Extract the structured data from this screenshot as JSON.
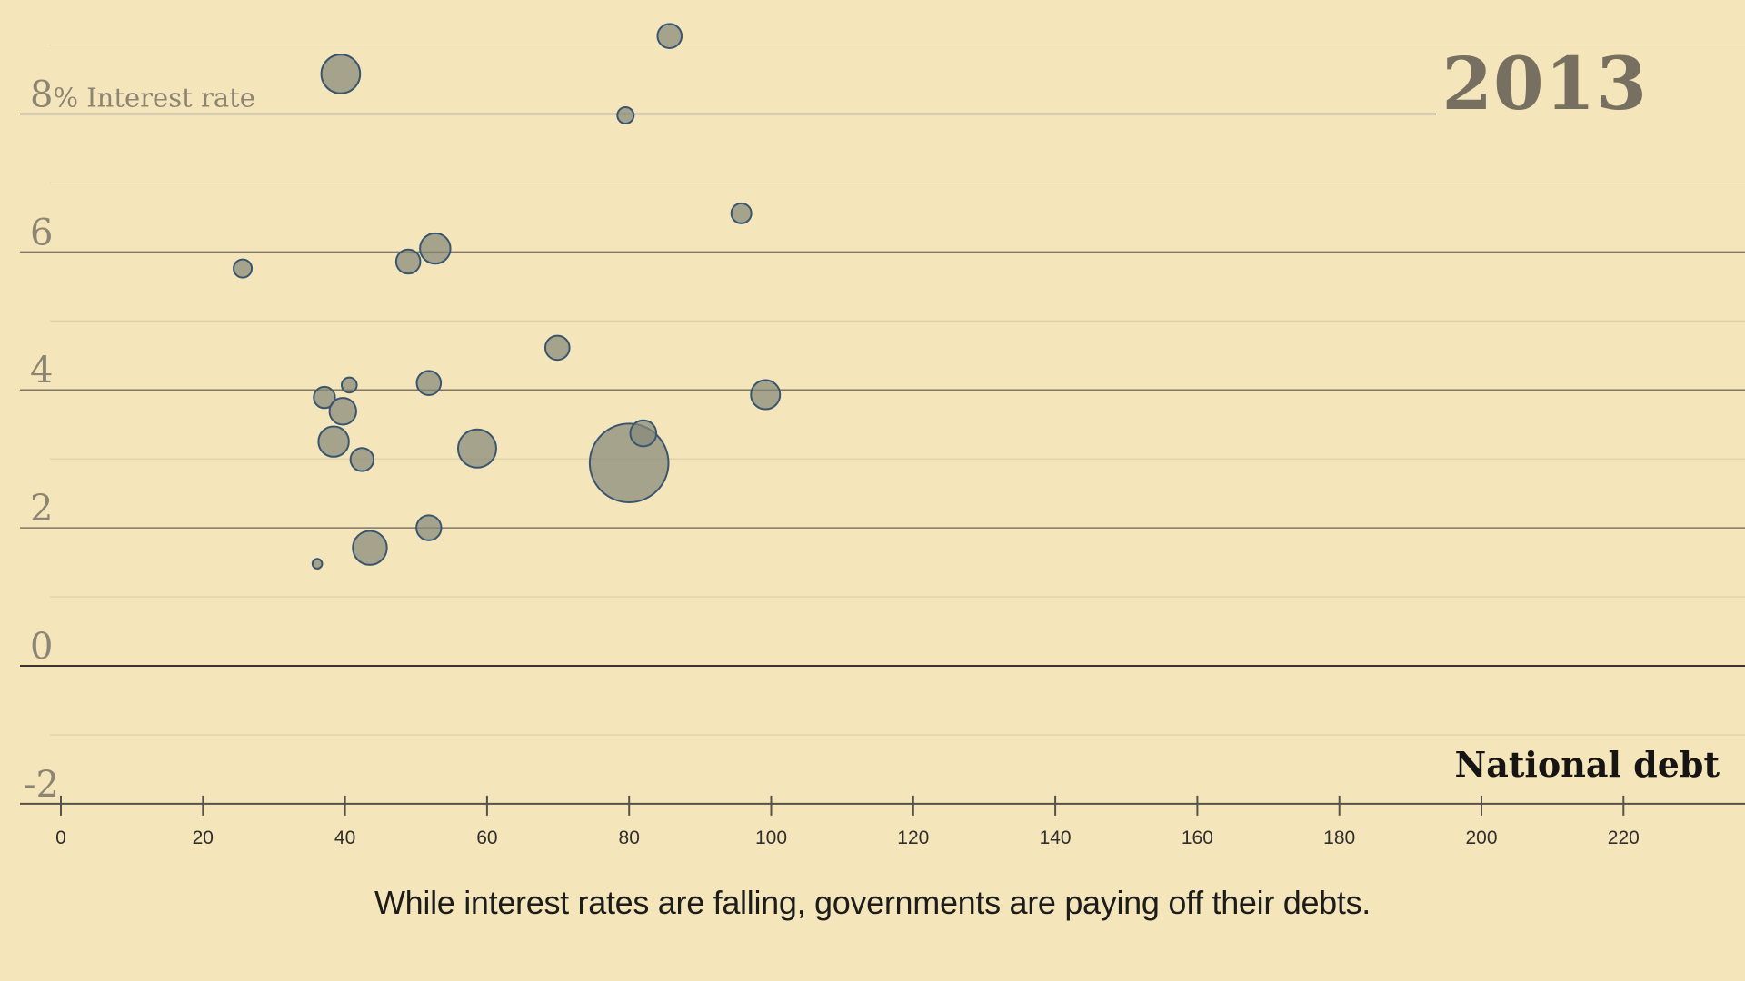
{
  "chart_data": {
    "type": "scatter",
    "title": "",
    "year_label": "2013",
    "xlabel": "National debt",
    "y_label_value": "8",
    "y_label_unit": "% Interest rate",
    "caption": "While interest rates are falling, governments are paying off their debts.",
    "x_axis": {
      "min": 0,
      "max": 237,
      "tick_step": 20,
      "ticks": [
        0,
        20,
        40,
        60,
        80,
        100,
        120,
        140,
        160,
        180,
        200,
        220
      ]
    },
    "y_axis": {
      "min": -2.3,
      "max": 9.4,
      "tick_labels": [
        8,
        6,
        4,
        2,
        0,
        -2
      ],
      "major_gridlines": [
        8,
        6,
        4,
        2,
        0
      ],
      "minor_gridlines": [
        9,
        7,
        5,
        3,
        1,
        -1
      ],
      "axis_value": -2
    },
    "bubbles": [
      {
        "debt": 85.7,
        "rate": 9.13,
        "r": 13.3
      },
      {
        "debt": 39.4,
        "rate": 8.58,
        "r": 21.3
      },
      {
        "debt": 79.5,
        "rate": 7.98,
        "r": 9
      },
      {
        "debt": 95.8,
        "rate": 6.56,
        "r": 11
      },
      {
        "debt": 52.7,
        "rate": 6.05,
        "r": 16.7
      },
      {
        "debt": 48.9,
        "rate": 5.86,
        "r": 13.3
      },
      {
        "debt": 25.6,
        "rate": 5.76,
        "r": 10
      },
      {
        "debt": 69.9,
        "rate": 4.61,
        "r": 13.3
      },
      {
        "debt": 51.8,
        "rate": 4.1,
        "r": 13.3
      },
      {
        "debt": 40.6,
        "rate": 4.07,
        "r": 8.3
      },
      {
        "debt": 37.1,
        "rate": 3.89,
        "r": 11.7
      },
      {
        "debt": 99.2,
        "rate": 3.93,
        "r": 16
      },
      {
        "debt": 39.7,
        "rate": 3.69,
        "r": 14.7
      },
      {
        "debt": 38.4,
        "rate": 3.25,
        "r": 16.7
      },
      {
        "debt": 80.0,
        "rate": 2.94,
        "r": 43.3
      },
      {
        "debt": 82.0,
        "rate": 3.37,
        "r": 14.3
      },
      {
        "debt": 42.4,
        "rate": 2.99,
        "r": 12.7
      },
      {
        "debt": 58.6,
        "rate": 3.15,
        "r": 21
      },
      {
        "debt": 51.8,
        "rate": 2.0,
        "r": 13.7
      },
      {
        "debt": 43.5,
        "rate": 1.71,
        "r": 18.7
      },
      {
        "debt": 36.1,
        "rate": 1.48,
        "r": 5.3
      }
    ],
    "colors": {
      "background": "#f5e5ba",
      "bubble_fill": "#86897a",
      "bubble_fill_opacity": 0.72,
      "bubble_stroke": "#3a566f",
      "grid_major": "#7d7869",
      "grid_zero": "#37352e",
      "grid_minor": "#96875f",
      "grid_minor_opacity": 0.28,
      "axis_line": "#55524a",
      "y_label": "#8c8573",
      "x_tick_label": "#2f2f2d",
      "year": "#776f5f",
      "x_title": "#171513",
      "caption": "#1c1c1a"
    },
    "legend": null,
    "grid": true
  }
}
